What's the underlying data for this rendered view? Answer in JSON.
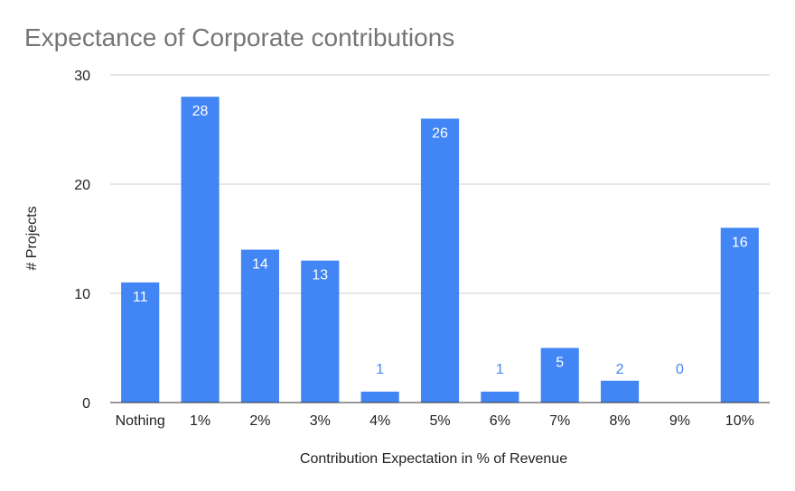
{
  "chart_data": {
    "type": "bar",
    "title": "Expectance of Corporate contributions",
    "xlabel": "Contribution Expectation in % of Revenue",
    "ylabel": "# Projects",
    "categories": [
      "Nothing",
      "1%",
      "2%",
      "3%",
      "4%",
      "5%",
      "6%",
      "7%",
      "8%",
      "9%",
      "10%"
    ],
    "values": [
      11,
      28,
      14,
      13,
      1,
      26,
      1,
      5,
      2,
      0,
      16
    ],
    "ylim": [
      0,
      30
    ],
    "yticks": [
      0,
      10,
      20,
      30
    ],
    "grid": true,
    "data_labels": true,
    "bar_color": "#4285f4"
  }
}
